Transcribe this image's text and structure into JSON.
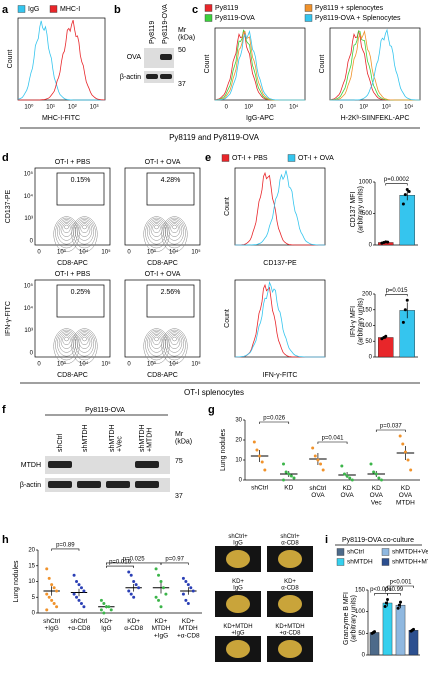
{
  "figure": {
    "panel_letters": [
      "a",
      "b",
      "c",
      "d",
      "e",
      "f",
      "g",
      "h",
      "i"
    ],
    "a": {
      "legend": [
        "IgG",
        "MHC-I"
      ],
      "ylabel": "Count",
      "xlabel": "MHC-I-FITC",
      "xticks": [
        "10⁰",
        "10¹",
        "10²",
        "10³"
      ]
    },
    "b": {
      "lanes": [
        "Py8119",
        "Py8119-OVA"
      ],
      "rows": [
        "OVA",
        "β-actin"
      ],
      "mw_label": "Mr\n(kDa)",
      "markers": [
        "50",
        "37"
      ]
    },
    "c": {
      "legend": [
        "Py8119",
        "Py8119-OVA",
        "Py8119 + splenocytes",
        "Py8119-OVA + Splenocytes"
      ],
      "ylabel": "Count",
      "xlabels": [
        "IgG-APC",
        "H-2Kᵇ-SIINFEKL-APC"
      ],
      "xticks": [
        "0",
        "10²",
        "10³",
        "10⁴"
      ]
    },
    "caption_top": "Py8119 and Py8119-OVA",
    "d": {
      "titles": [
        "OT-I + PBS",
        "OT-I + OVA",
        "OT-I + PBS",
        "OT-I + OVA"
      ],
      "percentages": [
        "0.15%",
        "4.28%",
        "0.25%",
        "2.56%"
      ],
      "ylabels": [
        "CD137-PE",
        "IFN-γ-FITC"
      ],
      "xlabel": "CD8-APC",
      "yticks": [
        "10⁵",
        "10⁴",
        "10³",
        "0"
      ],
      "xticks": [
        "0",
        "10³",
        "10⁴",
        "10⁵"
      ]
    },
    "e": {
      "legend": [
        "OT-I + PBS",
        "OT-I + OVA"
      ],
      "ylabel": "Count",
      "xlabels": [
        "CD137-PE",
        "IFN-γ-FITC"
      ]
    },
    "caption_mid": "OT-I splenocytes",
    "f": {
      "title": "Py8119-OVA",
      "lanes": [
        "shCtrl",
        "shMTDH",
        "shMTDH\n+Vec",
        "shMTDH\n+MTDH"
      ],
      "rows": [
        "MTDH",
        "β-actin"
      ],
      "mw_label": "Mr\n(kDa)",
      "markers": [
        "75",
        "37"
      ]
    },
    "images": [
      "shCtrl+\nIgG",
      "shCtrl+\nα-CD8",
      "KD+\nIgG",
      "KD+\nα-CD8",
      "KD+MTDH\n+IgG",
      "KD+MTDH\n+α-CD8"
    ],
    "i": {
      "title": "Py8119-OVA co-culture"
    }
  },
  "chart_data": [
    {
      "type": "bar",
      "ylabel": "CD137 MFI\n(arbitrary units)",
      "values": [
        40,
        790
      ],
      "errors": [
        10,
        80
      ],
      "colors": [
        "#e8262a",
        "#35c5ee"
      ],
      "points": [
        [
          30,
          40,
          50,
          45
        ],
        [
          650,
          800,
          880,
          850
        ]
      ],
      "ylim": [
        0,
        1000
      ],
      "yticks": [
        0,
        500,
        1000
      ],
      "annotations": [
        "p=0.0002"
      ]
    },
    {
      "type": "bar",
      "ylabel": "IFN-γ MFI\n(arbitrary units)",
      "values": [
        62,
        148
      ],
      "errors": [
        5,
        25
      ],
      "colors": [
        "#e8262a",
        "#35c5ee"
      ],
      "points": [
        [
          58,
          62,
          66
        ],
        [
          110,
          150,
          180
        ]
      ],
      "ylim": [
        0,
        200
      ],
      "yticks": [
        0,
        50,
        100,
        150,
        200
      ],
      "annotations": [
        "p=0.015"
      ]
    },
    {
      "type": "dot",
      "ylabel": "Lung nodules",
      "categories": [
        "shCtrl",
        "KD",
        "shCtrl\nOVA",
        "KD\nOVA",
        "KD\nOVA\nVec",
        "KD\nOVA\nMTDH"
      ],
      "colors": [
        "#f0922b",
        "#3cb54a",
        "#f0922b",
        "#3cb54a",
        "#3cb54a",
        "#f0922b"
      ],
      "means": [
        12,
        3,
        10.5,
        2.5,
        3,
        13.5
      ],
      "errors": [
        3,
        1.5,
        3,
        1.5,
        1.5,
        3.5
      ],
      "points": [
        [
          19,
          15,
          12,
          9,
          5
        ],
        [
          8,
          4,
          3,
          2,
          1,
          0
        ],
        [
          16,
          12,
          10,
          8,
          5
        ],
        [
          7,
          3,
          2,
          1,
          0
        ],
        [
          8,
          4,
          3,
          1,
          0
        ],
        [
          22,
          18,
          14,
          10,
          5
        ]
      ],
      "ylim": [
        0,
        30
      ],
      "yticks": [
        0,
        10,
        20,
        30
      ],
      "annotations": [
        "p=0.026",
        "p=0.041",
        "p=0.037"
      ]
    },
    {
      "type": "dot",
      "ylabel": "Lung nodules",
      "categories": [
        "shCtrl\n+IgG",
        "shCtrl\n+α-CD8",
        "KD+\nIgG",
        "KD+\nα-CD8",
        "KD+\nMTDH\n+IgG",
        "KD+\nMTDH\n+α-CD8"
      ],
      "colors": [
        "#f0922b",
        "#2a3fb5",
        "#3cb54a",
        "#2a3fb5",
        "#3cb54a",
        "#2a3fb5"
      ],
      "means": [
        7,
        6.5,
        2,
        8,
        8,
        7
      ],
      "errors": [
        1.5,
        1.2,
        0.5,
        1.2,
        1.8,
        1.2
      ],
      "points": [
        [
          14,
          11,
          9,
          8,
          7,
          6,
          5,
          4,
          3,
          2,
          1
        ],
        [
          12,
          10,
          9,
          8,
          7,
          6,
          5,
          4,
          3,
          2
        ],
        [
          4,
          3,
          2,
          2,
          1,
          1,
          0
        ],
        [
          13,
          12,
          10,
          9,
          8,
          7,
          6,
          5
        ],
        [
          14,
          12,
          10,
          8,
          6,
          5,
          4,
          2
        ],
        [
          11,
          10,
          9,
          8,
          7,
          6,
          4,
          3
        ]
      ],
      "ylim": [
        0,
        20
      ],
      "yticks": [
        0,
        5,
        10,
        15,
        20
      ],
      "annotations": [
        "p=0.89",
        "p=0.016",
        "p=0.025",
        "p=0.97"
      ]
    },
    {
      "type": "bar",
      "ylabel": "Granzyme B MFI\n(arbitrary units)",
      "categories": [
        "shCtrl",
        "shMTDH",
        "shMTDH+Vec",
        "shMTDH+MTDH"
      ],
      "colors": [
        "#4d6a8a",
        "#35d0ee",
        "#8fb8e0",
        "#2c4f8f"
      ],
      "values": [
        52,
        120,
        115,
        57
      ],
      "errors": [
        3,
        8,
        7,
        2
      ],
      "points": [
        [
          50,
          52,
          54
        ],
        [
          112,
          120,
          128
        ],
        [
          108,
          115,
          122
        ],
        [
          55,
          57,
          59
        ]
      ],
      "ylim": [
        0,
        150
      ],
      "yticks": [
        0,
        50,
        100,
        150
      ],
      "annotations": [
        "p<0.001",
        "p<0.001",
        "p=0.99"
      ]
    }
  ]
}
